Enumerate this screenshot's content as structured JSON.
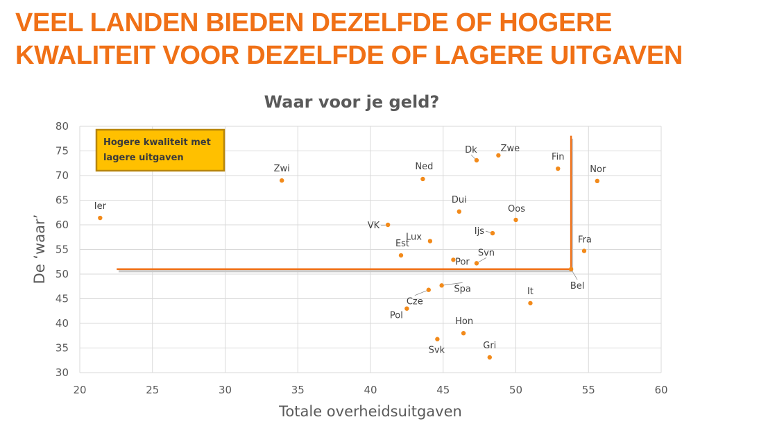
{
  "headline": {
    "line1": "VEEL LANDEN BIEDEN DEZELFDE OF HOGERE",
    "line2": "KWALITEIT VOOR DEZELFDE OF LAGERE UITGAVEN"
  },
  "colors": {
    "accent": "#f07016",
    "points": "#f28a1a",
    "box_fill": "#ffc000",
    "box_border": "#b8860b",
    "grid": "#d9d9d9"
  },
  "chart_data": {
    "type": "scatter",
    "title": "Waar voor je geld?",
    "xlabel": "Totale overheidsuitgaven",
    "ylabel": "De ‘waar’",
    "xlim": [
      20,
      60
    ],
    "ylim": [
      30,
      80
    ],
    "xticks": [
      20,
      25,
      30,
      35,
      40,
      45,
      50,
      55,
      60
    ],
    "yticks": [
      30,
      35,
      40,
      45,
      50,
      55,
      60,
      65,
      70,
      75,
      80
    ],
    "grid": true,
    "points": [
      {
        "label": "Ier",
        "x": 21.4,
        "y": 61.4
      },
      {
        "label": "Zwi",
        "x": 33.9,
        "y": 69.0
      },
      {
        "label": "Ned",
        "x": 43.6,
        "y": 69.3
      },
      {
        "label": "Dk",
        "x": 47.3,
        "y": 73.1
      },
      {
        "label": "Zwe",
        "x": 48.8,
        "y": 74.1
      },
      {
        "label": "Fin",
        "x": 52.9,
        "y": 71.4
      },
      {
        "label": "Nor",
        "x": 55.6,
        "y": 68.9
      },
      {
        "label": "Dui",
        "x": 46.1,
        "y": 62.7
      },
      {
        "label": "Oos",
        "x": 50.0,
        "y": 61.0
      },
      {
        "label": "VK",
        "x": 41.2,
        "y": 60.0
      },
      {
        "label": "Ijs",
        "x": 48.4,
        "y": 58.3
      },
      {
        "label": "Lux",
        "x": 44.1,
        "y": 56.7
      },
      {
        "label": "Est",
        "x": 42.1,
        "y": 53.8
      },
      {
        "label": "Fra",
        "x": 54.7,
        "y": 54.7
      },
      {
        "label": "Svn",
        "x": 47.3,
        "y": 52.2
      },
      {
        "label": "Por",
        "x": 45.7,
        "y": 52.9
      },
      {
        "label": "Bel",
        "x": 53.8,
        "y": 51.0
      },
      {
        "label": "Spa",
        "x": 44.9,
        "y": 47.7
      },
      {
        "label": "Cze",
        "x": 44.0,
        "y": 46.8
      },
      {
        "label": "It",
        "x": 51.0,
        "y": 44.1
      },
      {
        "label": "Pol",
        "x": 42.5,
        "y": 43.0
      },
      {
        "label": "Hon",
        "x": 46.4,
        "y": 38.0
      },
      {
        "label": "Svk",
        "x": 44.6,
        "y": 36.8
      },
      {
        "label": "Gri",
        "x": 48.2,
        "y": 33.1
      }
    ],
    "reference_lines": [
      {
        "from": [
          22.6,
          51.0
        ],
        "to": [
          53.8,
          51.0
        ]
      },
      {
        "from": [
          53.8,
          51.0
        ],
        "to": [
          53.8,
          77.9
        ]
      }
    ],
    "annotation": "Hogere kwaliteit met lagere uitgaven"
  }
}
